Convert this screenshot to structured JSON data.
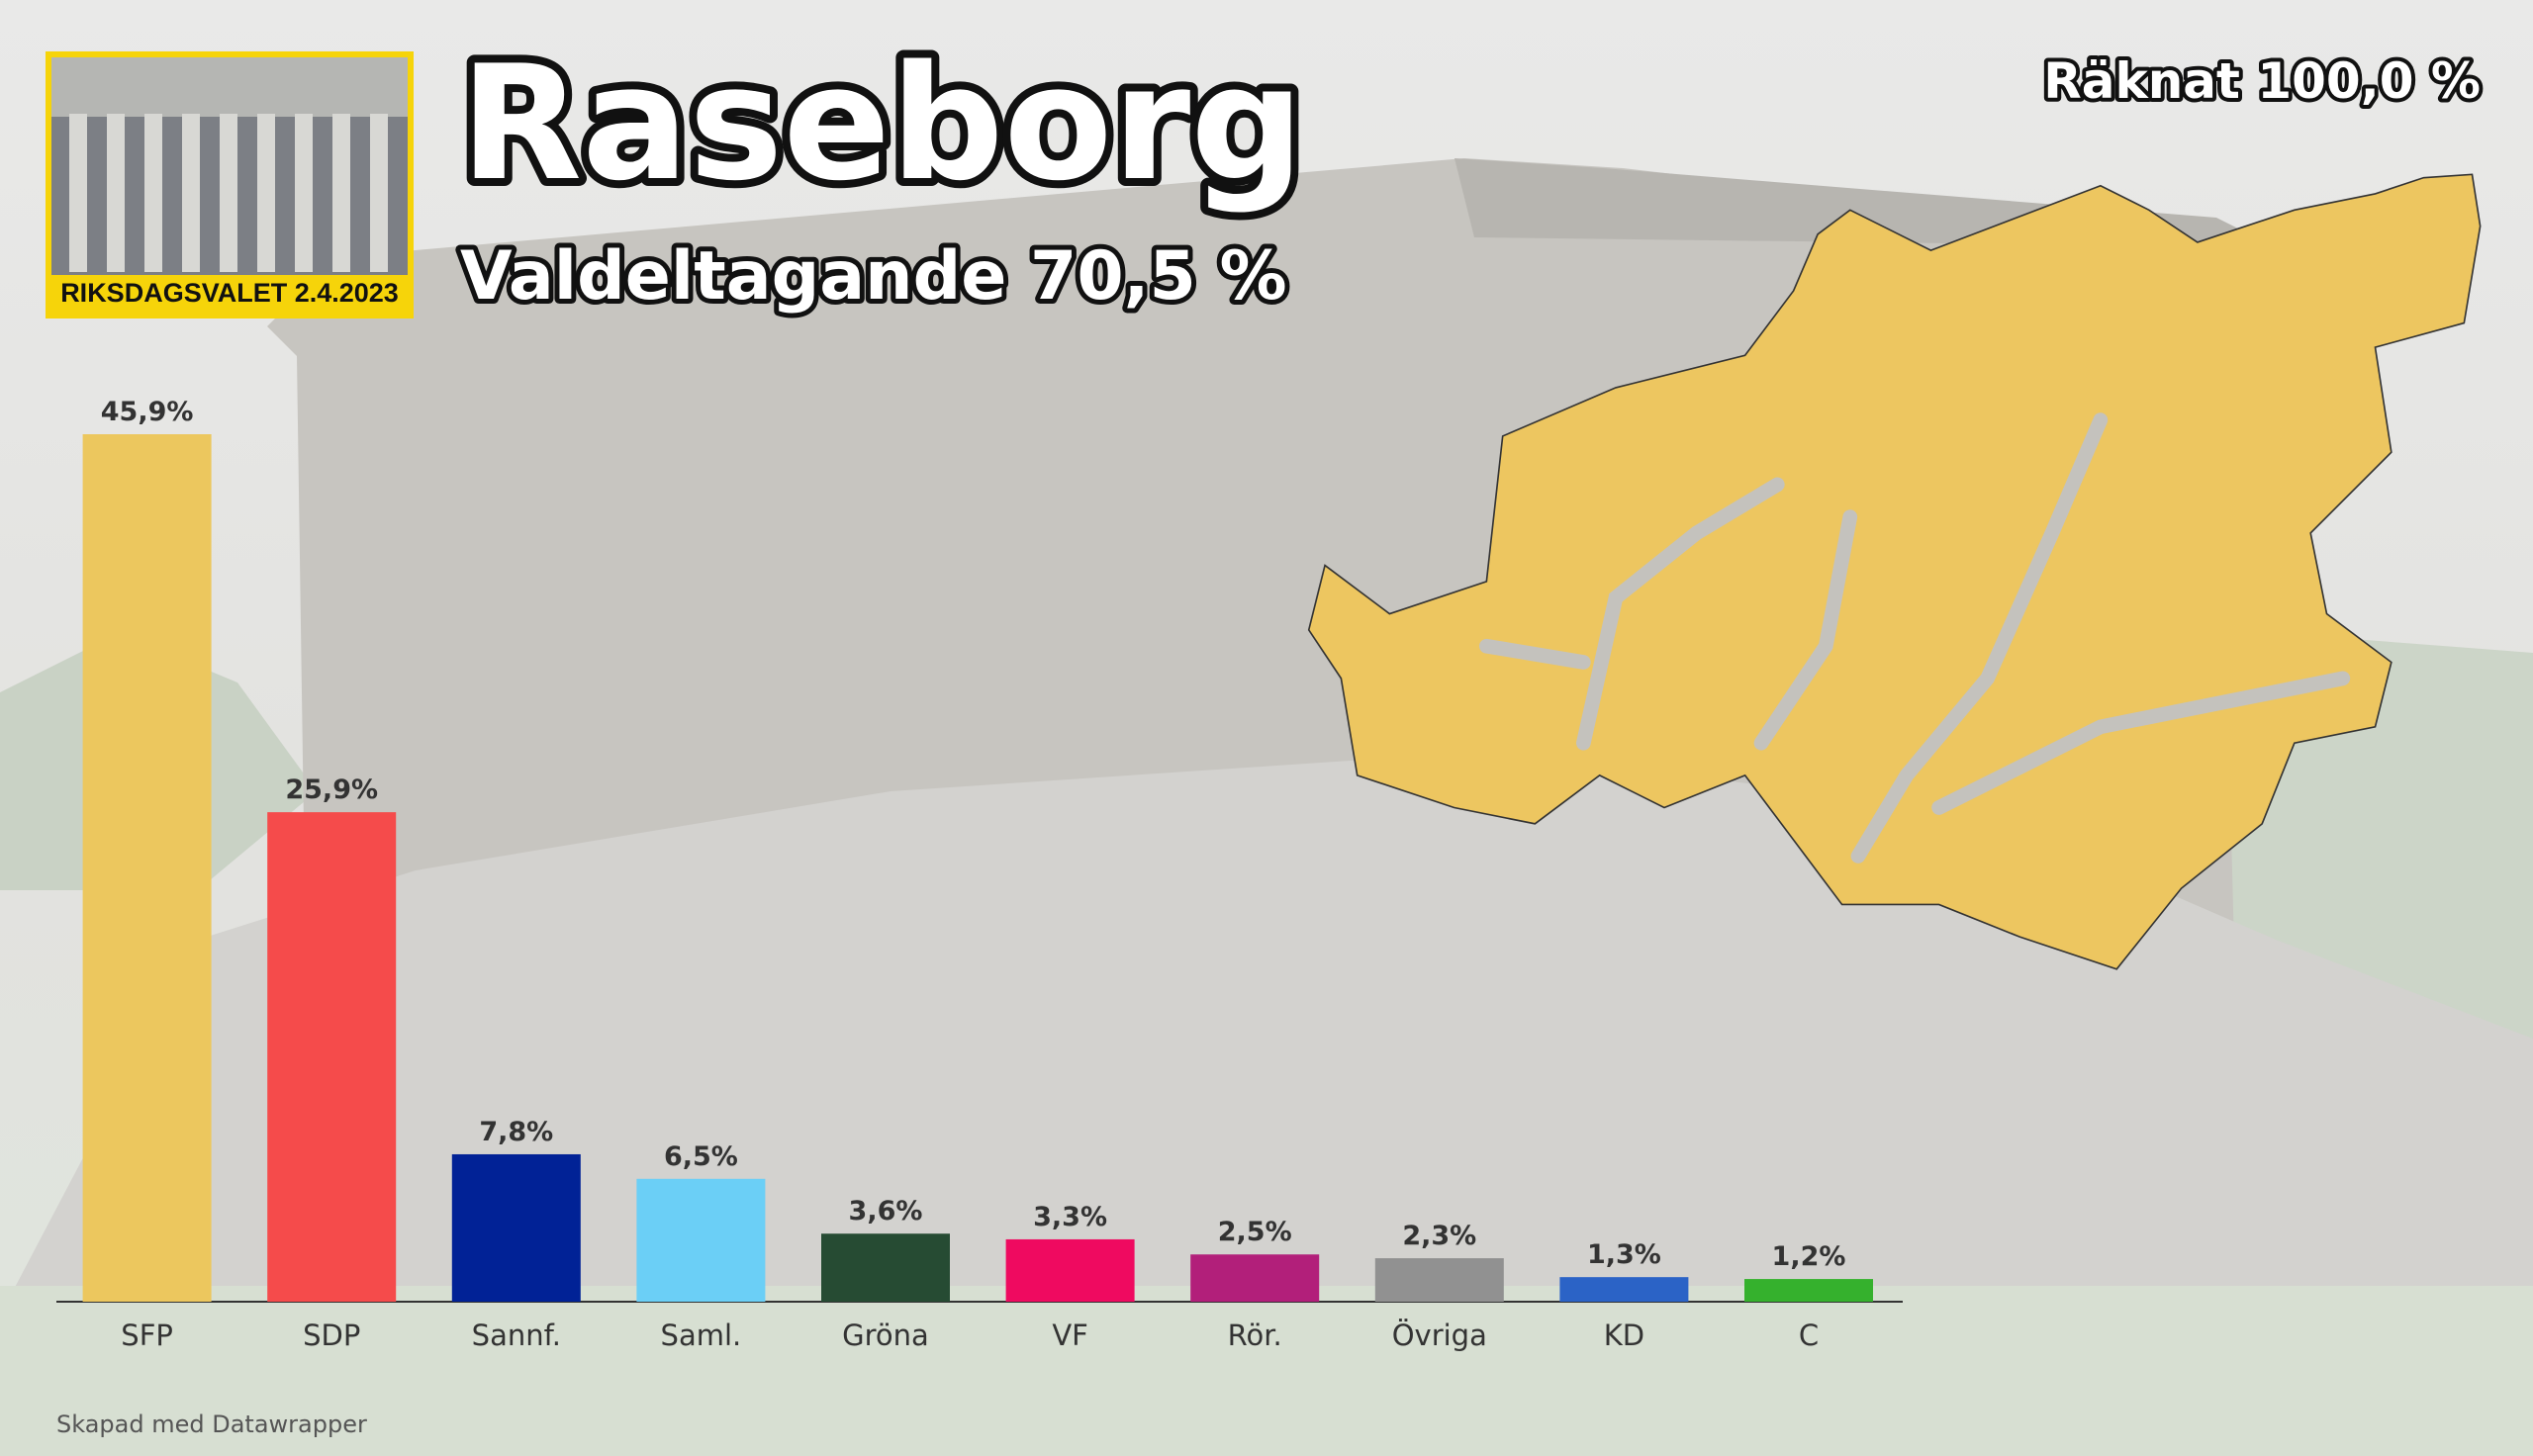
{
  "chart_data": {
    "type": "bar",
    "title": "Raseborg",
    "subtitle": "Valdeltagande 70,5 %",
    "counted": "Räknat 100,0 %",
    "badge": "RIKSDAGSVALET 2.4.2023",
    "note": "Skapad med Datawrapper",
    "categories": [
      "SFP",
      "SDP",
      "Sannf.",
      "Saml.",
      "Gröna",
      "VF",
      "Rör.",
      "Övriga",
      "KD",
      "C"
    ],
    "values": [
      45.9,
      25.9,
      7.8,
      6.5,
      3.6,
      3.3,
      2.5,
      2.3,
      1.3,
      1.2
    ],
    "value_labels": [
      "45,9%",
      "25,9%",
      "7,8%",
      "6,5%",
      "3,6%",
      "3,3%",
      "2,5%",
      "2,3%",
      "1,3%",
      "1,2%"
    ],
    "colors": [
      "#ecc75e",
      "#f54b4b",
      "#012296",
      "#6bcff6",
      "#264b33",
      "#ef0a60",
      "#b21f7a",
      "#919191",
      "#2b63c6",
      "#35b12d"
    ]
  }
}
